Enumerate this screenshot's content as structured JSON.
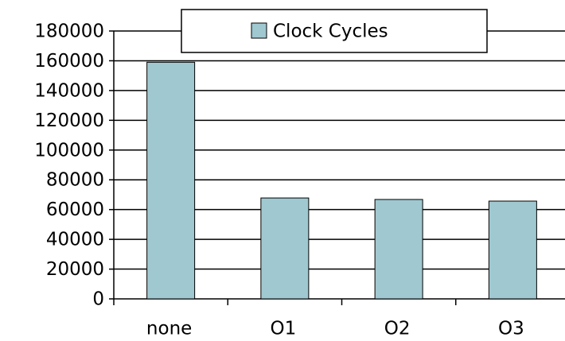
{
  "chart_data": {
    "type": "bar",
    "legend": "Clock Cycles",
    "legend_position": "top",
    "categories": [
      "none",
      "O1",
      "O2",
      "O3"
    ],
    "series": [
      {
        "name": "Clock Cycles",
        "color": "#a0c8d0",
        "values": [
          159000,
          67800,
          66800,
          65700
        ]
      }
    ],
    "ylim": [
      0,
      180000
    ],
    "yticks": [
      0,
      20000,
      40000,
      60000,
      80000,
      100000,
      120000,
      140000,
      160000,
      180000
    ],
    "grid": true
  }
}
